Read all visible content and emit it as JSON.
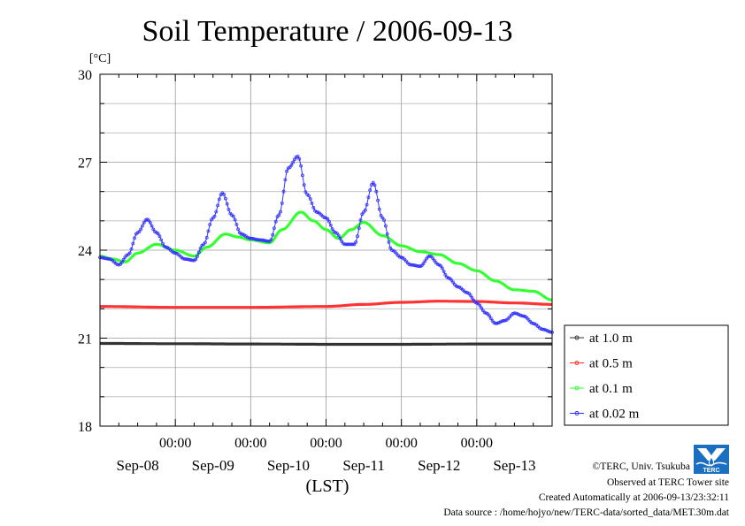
{
  "chart_data": {
    "type": "line",
    "title": "Soil Temperature / 2006-09-13",
    "ylabel": "[°C]",
    "xlabel": "(LST)",
    "ylim": [
      18,
      30
    ],
    "yticks": [
      18,
      21,
      24,
      27,
      30
    ],
    "xlim": [
      0,
      144
    ],
    "time_ticks": [
      {
        "x": 24,
        "label": "00:00"
      },
      {
        "x": 48,
        "label": "00:00"
      },
      {
        "x": 72,
        "label": "00:00"
      },
      {
        "x": 96,
        "label": "00:00"
      },
      {
        "x": 120,
        "label": "00:00"
      }
    ],
    "day_labels": [
      {
        "x": 12,
        "label": "Sep-08"
      },
      {
        "x": 36,
        "label": "Sep-09"
      },
      {
        "x": 60,
        "label": "Sep-10"
      },
      {
        "x": 84,
        "label": "Sep-11"
      },
      {
        "x": 108,
        "label": "Sep-12"
      },
      {
        "x": 132,
        "label": "Sep-13"
      }
    ],
    "grid": true,
    "legend_position": "right",
    "series": [
      {
        "name": "at 1.0 m",
        "color": "#333333",
        "points": [
          [
            0,
            20.82
          ],
          [
            24,
            20.81
          ],
          [
            48,
            20.8
          ],
          [
            72,
            20.79
          ],
          [
            96,
            20.79
          ],
          [
            120,
            20.8
          ],
          [
            144,
            20.8
          ]
        ]
      },
      {
        "name": "at 0.5 m",
        "color": "#ff3333",
        "points": [
          [
            0,
            22.08
          ],
          [
            24,
            22.05
          ],
          [
            48,
            22.05
          ],
          [
            72,
            22.08
          ],
          [
            84,
            22.15
          ],
          [
            96,
            22.22
          ],
          [
            108,
            22.26
          ],
          [
            120,
            22.25
          ],
          [
            132,
            22.2
          ],
          [
            144,
            22.15
          ]
        ]
      },
      {
        "name": "at 0.1 m",
        "color": "#33ff33",
        "points": [
          [
            0,
            23.8
          ],
          [
            4,
            23.7
          ],
          [
            8,
            23.6
          ],
          [
            12,
            23.9
          ],
          [
            18,
            24.2
          ],
          [
            24,
            24.0
          ],
          [
            30,
            23.8
          ],
          [
            34,
            24.1
          ],
          [
            40,
            24.55
          ],
          [
            44,
            24.45
          ],
          [
            48,
            24.35
          ],
          [
            54,
            24.25
          ],
          [
            58,
            24.7
          ],
          [
            64,
            25.3
          ],
          [
            68,
            25.0
          ],
          [
            72,
            24.7
          ],
          [
            76,
            24.4
          ],
          [
            80,
            24.7
          ],
          [
            84,
            24.95
          ],
          [
            90,
            24.5
          ],
          [
            96,
            24.15
          ],
          [
            102,
            23.95
          ],
          [
            108,
            23.85
          ],
          [
            114,
            23.55
          ],
          [
            120,
            23.3
          ],
          [
            126,
            22.95
          ],
          [
            132,
            22.65
          ],
          [
            138,
            22.6
          ],
          [
            144,
            22.3
          ]
        ]
      },
      {
        "name": "at 0.02 m",
        "color": "#3333ff",
        "points": [
          [
            0,
            23.75
          ],
          [
            3,
            23.7
          ],
          [
            6,
            23.5
          ],
          [
            9,
            23.85
          ],
          [
            12,
            24.6
          ],
          [
            15,
            25.05
          ],
          [
            18,
            24.6
          ],
          [
            21,
            24.1
          ],
          [
            24,
            23.9
          ],
          [
            27,
            23.7
          ],
          [
            30,
            23.65
          ],
          [
            33,
            24.2
          ],
          [
            36,
            25.1
          ],
          [
            39,
            25.95
          ],
          [
            42,
            25.2
          ],
          [
            45,
            24.55
          ],
          [
            48,
            24.4
          ],
          [
            51,
            24.35
          ],
          [
            54,
            24.3
          ],
          [
            57,
            25.2
          ],
          [
            60,
            26.8
          ],
          [
            63,
            27.2
          ],
          [
            66,
            25.9
          ],
          [
            69,
            25.3
          ],
          [
            72,
            25.1
          ],
          [
            75,
            24.6
          ],
          [
            78,
            24.2
          ],
          [
            81,
            24.2
          ],
          [
            84,
            25.3
          ],
          [
            87,
            26.3
          ],
          [
            90,
            25.1
          ],
          [
            93,
            24.0
          ],
          [
            96,
            23.75
          ],
          [
            99,
            23.5
          ],
          [
            102,
            23.45
          ],
          [
            105,
            23.8
          ],
          [
            108,
            23.5
          ],
          [
            111,
            23.05
          ],
          [
            114,
            22.75
          ],
          [
            117,
            22.55
          ],
          [
            120,
            22.2
          ],
          [
            123,
            21.85
          ],
          [
            126,
            21.5
          ],
          [
            129,
            21.6
          ],
          [
            132,
            21.85
          ],
          [
            135,
            21.75
          ],
          [
            138,
            21.5
          ],
          [
            141,
            21.3
          ],
          [
            144,
            21.2
          ]
        ]
      }
    ]
  },
  "footer": {
    "credit": "©TERC, Univ. Tsukuba",
    "observed": "Observed at TERC Tower site",
    "created": "Created Automatically at 2006-09-13/23:32:11",
    "source": "Data source : /home/hojyo/new/TERC-data/sorted_data/MET.30m.dat"
  },
  "logo": {
    "text": "TERC",
    "color": "#1a6fc0"
  }
}
